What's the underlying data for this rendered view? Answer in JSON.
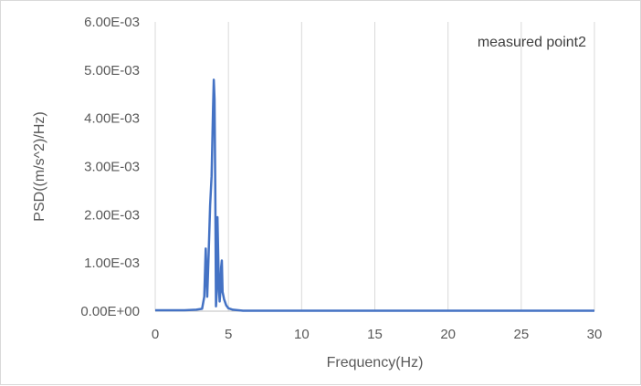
{
  "chart_data": {
    "type": "line",
    "annotation": "measured point2",
    "xlabel": "Frequency(Hz)",
    "ylabel": "PSD((m/s^2)/Hz)",
    "xlim": [
      0,
      30
    ],
    "ylim": [
      0,
      0.006
    ],
    "x_ticks": [
      0,
      5,
      10,
      15,
      20,
      25,
      30
    ],
    "x_tick_labels": [
      "0",
      "5",
      "10",
      "15",
      "20",
      "25",
      "30"
    ],
    "y_ticks": [
      0,
      0.001,
      0.002,
      0.003,
      0.004,
      0.005,
      0.006
    ],
    "y_tick_labels": [
      "0.00E+00",
      "1.00E-03",
      "2.00E-03",
      "3.00E-03",
      "4.00E-03",
      "5.00E-03",
      "6.00E-03"
    ],
    "grid": "vertical",
    "line_color": "#4472c4",
    "series": [
      {
        "x": [
          0,
          1,
          2,
          2.8,
          3.2,
          3.35,
          3.45,
          3.55,
          3.65,
          3.75,
          3.85,
          3.95,
          4.0,
          4.05,
          4.1,
          4.15,
          4.2,
          4.25,
          4.3,
          4.35,
          4.4,
          4.45,
          4.5,
          4.55,
          4.6,
          4.7,
          4.85,
          5.0,
          5.3,
          6,
          8,
          10,
          15,
          20,
          25,
          30
        ],
        "y": [
          2e-05,
          2e-05,
          2e-05,
          3e-05,
          5e-05,
          0.0003,
          0.0013,
          0.0003,
          0.0012,
          0.0022,
          0.0028,
          0.0042,
          0.0048,
          0.0044,
          0.0026,
          0.0001,
          0.0004,
          0.00195,
          0.0012,
          0.0005,
          0.0002,
          0.0004,
          0.0009,
          0.00105,
          0.0004,
          0.00025,
          0.00012,
          6e-05,
          3e-05,
          1e-05,
          1e-05,
          1e-05,
          1e-05,
          1e-05,
          1e-05,
          1e-05
        ]
      }
    ]
  }
}
